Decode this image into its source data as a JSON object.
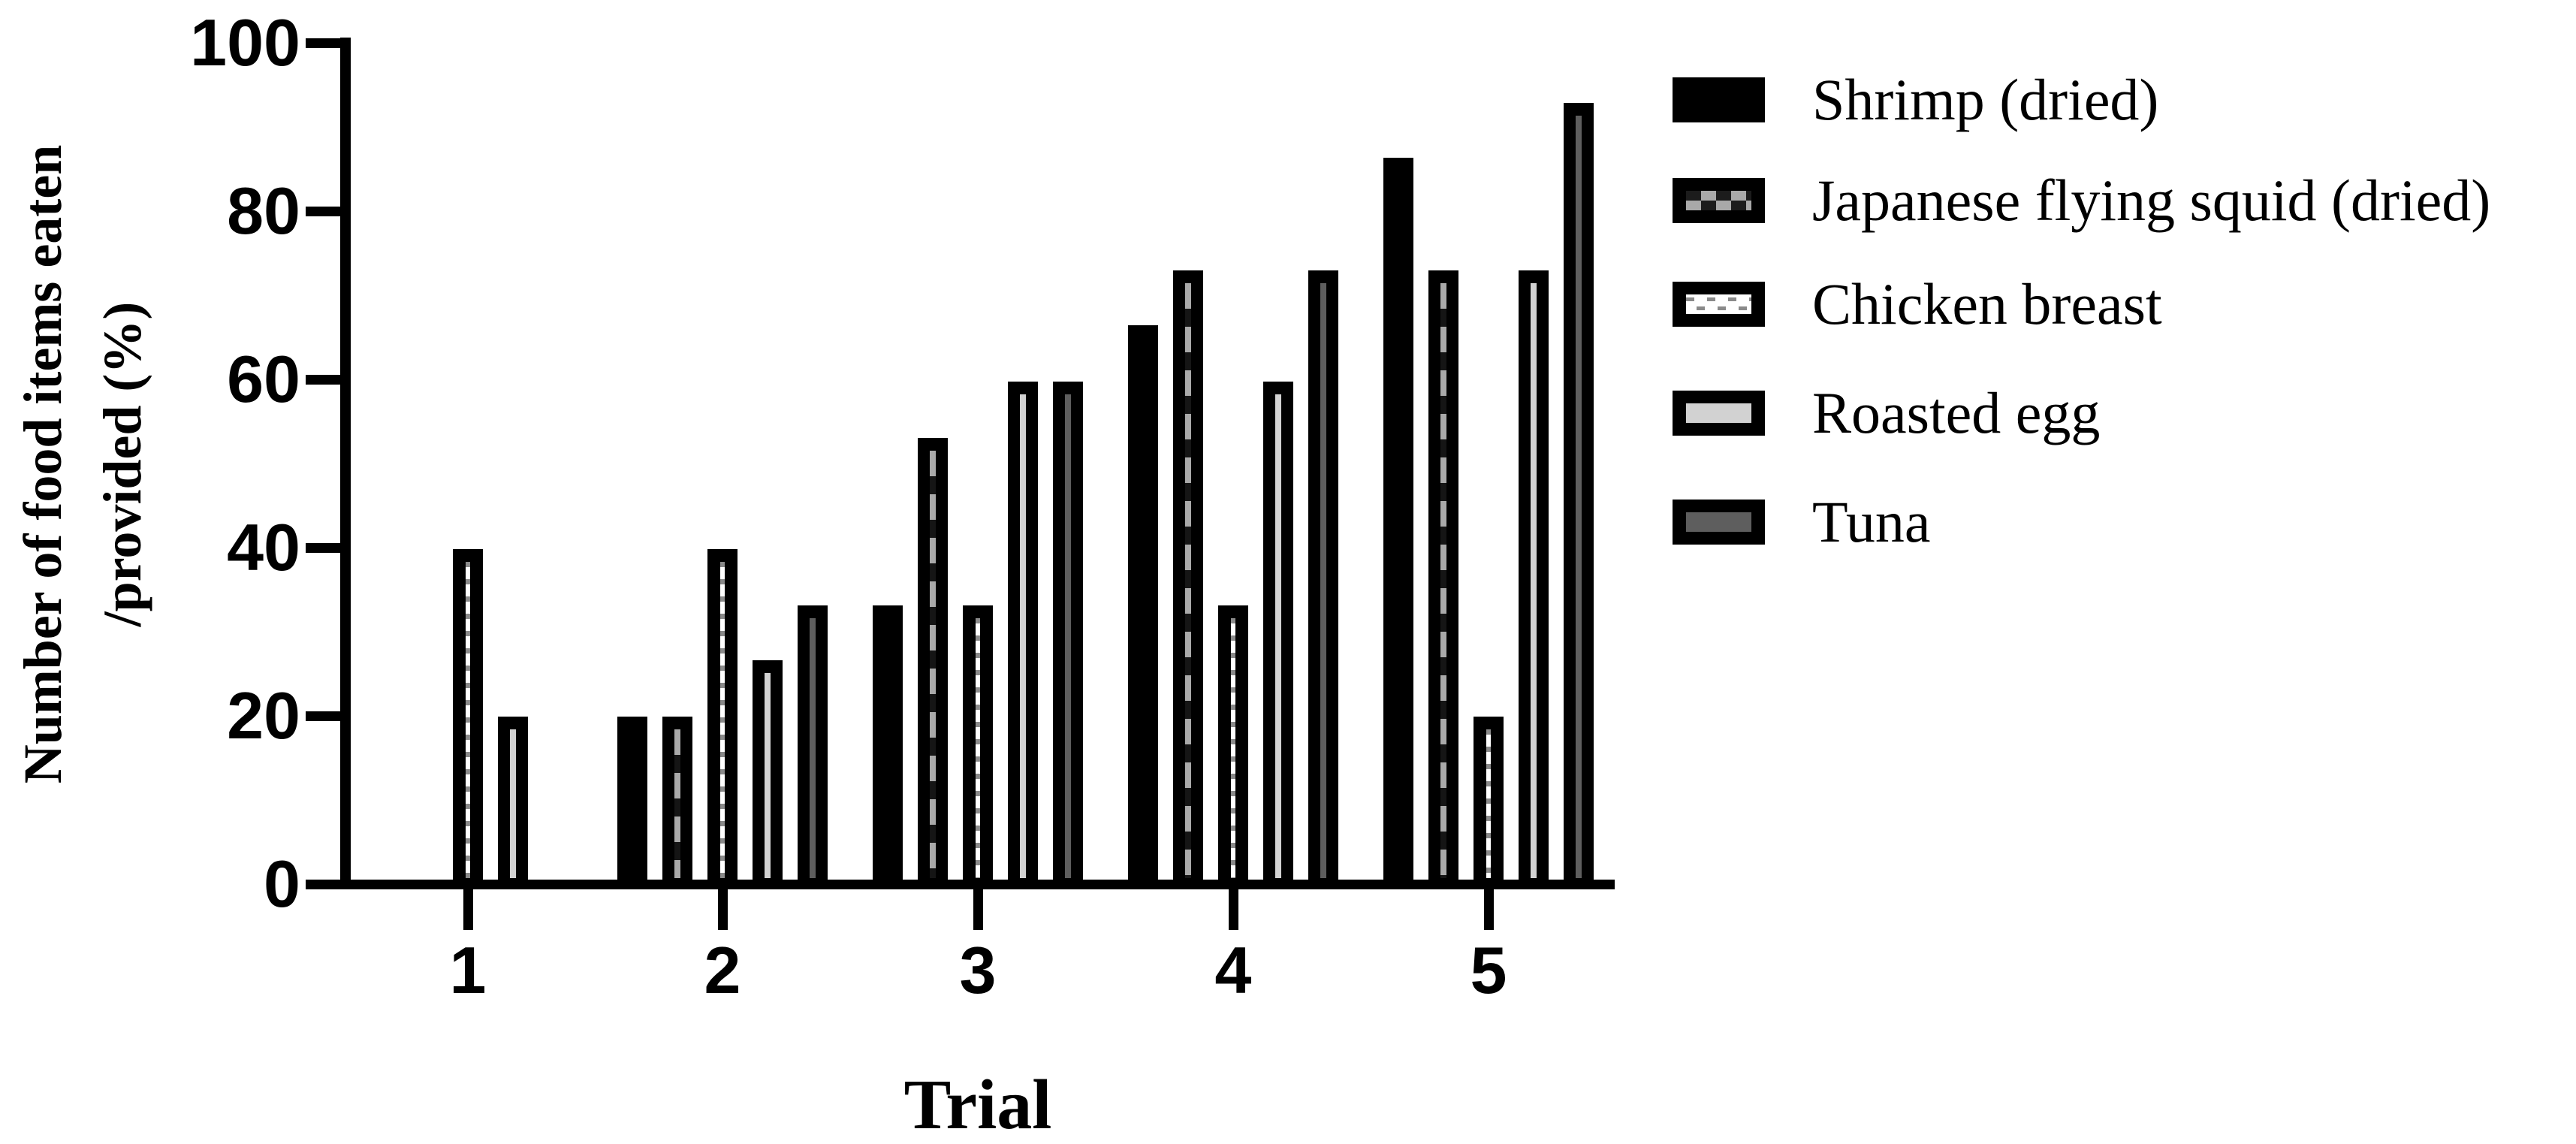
{
  "figure": {
    "x_axis_title": "Trial",
    "y_axis_title_line1": "Number of food items eaten",
    "y_axis_title_line2": "/provided (%)"
  },
  "chart_data": {
    "type": "bar",
    "title": "",
    "xlabel": "Trial",
    "ylabel": "Number of food items eaten /provided (%)",
    "categories": [
      "1",
      "2",
      "3",
      "4",
      "5"
    ],
    "y_ticks": [
      "0",
      "20",
      "40",
      "60",
      "80",
      "100"
    ],
    "ylim": [
      0,
      100
    ],
    "grid": false,
    "legend_position": "right",
    "series": [
      {
        "name": "Shrimp (dried)",
        "pattern": "solid",
        "values": [
          0,
          20,
          33.3,
          66.7,
          86.7
        ]
      },
      {
        "name": "Japanese flying squid (dried)",
        "pattern": "checker",
        "values": [
          0,
          20,
          53.3,
          73.3,
          73.3
        ]
      },
      {
        "name": "Chicken breast",
        "pattern": "dash",
        "values": [
          40,
          40,
          33.3,
          33.3,
          20
        ]
      },
      {
        "name": "Roasted egg",
        "pattern": "egg",
        "values": [
          20,
          26.7,
          60,
          60,
          73.3
        ]
      },
      {
        "name": "Tuna",
        "pattern": "tuna",
        "values": [
          0,
          33.3,
          60,
          73.3,
          93.3
        ]
      }
    ],
    "colors": {
      "bar": "#000000",
      "checker_light": "#a9a9a9",
      "checker_dark": "#1c1c1c",
      "dash_gray": "#8a8a8a",
      "egg_gray": "#d2d2d2",
      "tuna_gray": "#5e5e5e",
      "background": "#ffffff"
    }
  }
}
